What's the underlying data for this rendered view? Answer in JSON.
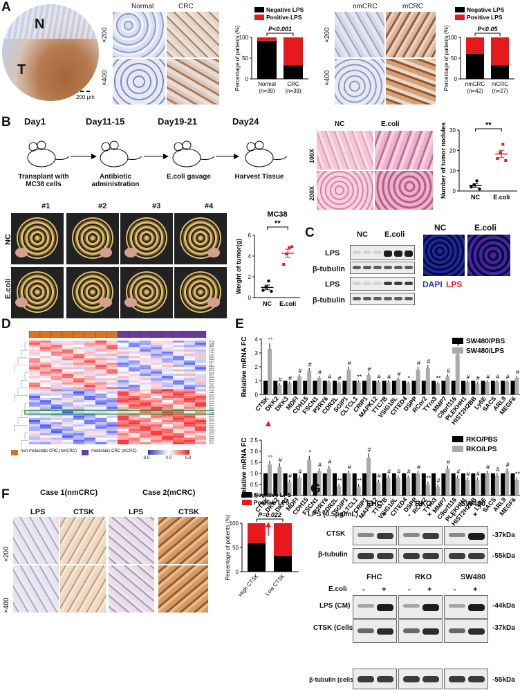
{
  "panels": {
    "A": "A",
    "B": "B",
    "C": "C",
    "D": "D",
    "E": "E",
    "F": "F",
    "G": "G"
  },
  "panelA": {
    "tissue_N": "N",
    "tissue_T": "T",
    "scale": "200 μm",
    "col_normal": "Normal",
    "col_crc": "CRC",
    "col_nmcrc": "nmCRC",
    "col_mcrc": "mCRC",
    "mag200": "×200",
    "mag400": "×400"
  },
  "panelB": {
    "days": [
      "Day1",
      "Day11-15",
      "Day19-21",
      "Day24"
    ],
    "steps": [
      "Transplant with MC38 cells",
      "Antibiotic administration",
      "E.coli gavage",
      "Harvest Tissue"
    ],
    "samples": [
      "#1",
      "#2",
      "#3",
      "#4"
    ],
    "rows": [
      "NC",
      "E.coli"
    ],
    "he_cols": [
      "NC",
      "E.coli"
    ],
    "he_rows": [
      "100X",
      "200X"
    ]
  },
  "panelC": {
    "cols": [
      "NC",
      "E.coli"
    ],
    "rows": [
      "LPS",
      "β-tubulin",
      "LPS",
      "β-tubulin"
    ],
    "if_cols": [
      "NC",
      "E.coli"
    ],
    "dapi": "DAPI",
    "lps": "LPS"
  },
  "panelD": {
    "genes": [
      "PCDHGB6",
      "GABRA2",
      "LRRC31",
      "STYX9",
      "CYP4F12",
      "CYP4F2",
      "CYP4F3",
      "PCK1",
      "TRAG",
      "GALNT4",
      "IYD",
      "ENPP2",
      "LOC100505946",
      "EHHADH",
      "SCN8A",
      "DDO",
      "LOC100507930",
      "KLHL32",
      "NEURL",
      "TSGA10",
      "LOC100289092",
      "RCOR2",
      "TYRO3",
      "MMP7",
      "C9orf116",
      "PLEKHH1",
      "HIST2H2BB",
      "LY6E",
      "SACS",
      "ARL9",
      "MEGF6",
      "LOC100507363",
      "CTSK",
      "COL6A2",
      "DKK2",
      "DKK3",
      "MDFI",
      "CDH15",
      "FSCN1",
      "P2RY6",
      "CDR2L",
      "SGIP1",
      "CLTCL1",
      "CRIP1",
      "MAPK12",
      "TTC7B",
      "VSIG10L"
    ],
    "legend_nm": "non-metastatic CRC (nmCRC)",
    "legend_m": "metastatic CRC (mCRC)",
    "scale_ticks": [
      "-6.0",
      "0.0",
      "6.0"
    ]
  },
  "panelF": {
    "case1": "Case 1(nmCRC)",
    "case2": "Case 2(mCRC)",
    "cols": [
      "LPS",
      "CTSK",
      "LPS",
      "CTSK"
    ],
    "mag200": "×200",
    "mag400": "×400"
  },
  "panelG": {
    "lps_label": "LPS (0.5μg/mL)",
    "ecoli_label": "E.coli",
    "cells": [
      "FHC",
      "RKO",
      "SW480"
    ],
    "signs": [
      "-",
      "+"
    ],
    "top_rows": [
      "CTSK",
      "β-tubulin"
    ],
    "bottom_rows": [
      "LPS (CM)",
      "CTSK (Cells)",
      "β-tubulin (cells)"
    ],
    "kda_top": [
      "-37kDa",
      "-55kDa"
    ],
    "kda_bottom": [
      "-44kDa",
      "-37kDa",
      "-55kDa"
    ]
  },
  "chart_data": [
    {
      "type": "bar",
      "stacked": true,
      "title": "",
      "ylabel": "Percentage of patients (%)",
      "categories": [
        "Normal\n(n=39)",
        "CRC\n(n=39)"
      ],
      "series": [
        {
          "name": "Negative LPS",
          "color": "#000000",
          "values": [
            92,
            33
          ]
        },
        {
          "name": "Positive LPS",
          "color": "#e8191c",
          "values": [
            8,
            67
          ]
        }
      ],
      "ylim": [
        0,
        100
      ],
      "yticks": [
        0,
        50,
        100
      ],
      "annotation": "P<0.001"
    },
    {
      "type": "bar",
      "stacked": true,
      "title": "",
      "ylabel": "Percentage of patients (%)",
      "categories": [
        "nmCRC\n(n=42)",
        "mCRC\n(n=27)"
      ],
      "series": [
        {
          "name": "Negative LPS",
          "color": "#000000",
          "values": [
            60,
            33
          ]
        },
        {
          "name": "Positive LPS",
          "color": "#e8191c",
          "values": [
            40,
            67
          ]
        }
      ],
      "ylim": [
        0,
        100
      ],
      "yticks": [
        0,
        50,
        100
      ],
      "annotation": "P<0.05"
    },
    {
      "type": "scatter",
      "title": "",
      "ylabel": "Number of tumor nodules",
      "categories": [
        "NC",
        "E.coli"
      ],
      "series": [
        {
          "name": "NC",
          "color": "#000000",
          "values": [
            2,
            3,
            5,
            1
          ]
        },
        {
          "name": "E.coli",
          "color": "#e8191c",
          "values": [
            16,
            19,
            23,
            15
          ]
        }
      ],
      "ylim": [
        0,
        30
      ],
      "yticks": [
        0,
        10,
        20,
        30
      ],
      "annotation": "**"
    },
    {
      "type": "scatter",
      "title": "MC38",
      "ylabel": "Weight of tumor(g)",
      "categories": [
        "NC",
        "E.coli"
      ],
      "series": [
        {
          "name": "NC",
          "color": "#000000",
          "values": [
            0.7,
            1.0,
            1.6,
            0.6
          ]
        },
        {
          "name": "E.coli",
          "color": "#e8191c",
          "values": [
            3.2,
            4.2,
            4.8,
            4.9
          ]
        }
      ],
      "ylim": [
        0,
        6
      ],
      "yticks": [
        0,
        2,
        4,
        6
      ],
      "annotation": "**"
    },
    {
      "type": "bar",
      "title": "",
      "ylabel": "Relative mRNA FC",
      "categories": [
        "CTSK",
        "DKK2",
        "DKK3",
        "MDFI",
        "CDH15",
        "FSCN1",
        "P2RY6",
        "CDR2L",
        "SGIP1",
        "CLTCL1",
        "CRIP1",
        "MAPK12",
        "TTC7B",
        "VSIG10L",
        "CITED4",
        "DSPP",
        "RCor2",
        "TYro3",
        "MMP7",
        "C9orf116",
        "PLEKHH1",
        "HIST2H2BB",
        "Ly6E",
        "SACS",
        "ARL9",
        "MEGF6"
      ],
      "series": [
        {
          "name": "SW480/PBS",
          "color": "#000000",
          "values": [
            1,
            1,
            1,
            1,
            1,
            1,
            1,
            1,
            1,
            1,
            1,
            1,
            1,
            1,
            1,
            1,
            1,
            1,
            1,
            1,
            1,
            1,
            1,
            1,
            1,
            1
          ]
        },
        {
          "name": "SW480/LPS",
          "color": "#aaaaaa",
          "values": [
            3.3,
            0.7,
            0.8,
            1.3,
            1.7,
            1.2,
            0.9,
            0.8,
            1.8,
            0.9,
            1.4,
            0.9,
            0.9,
            1.1,
            0.8,
            1.8,
            1.9,
            0.8,
            1.3,
            2.9,
            0.9,
            0.8,
            0.9,
            0.9,
            0.9,
            1.2
          ]
        }
      ],
      "ylim": [
        0,
        4
      ],
      "yticks": [
        0,
        1,
        2,
        3,
        4
      ],
      "significance": [
        "**",
        "#",
        "#",
        "#",
        "#",
        "#",
        "#",
        "#",
        "#",
        "**",
        "#",
        "#",
        "#",
        "#",
        "*",
        "#",
        "#",
        "**",
        "#",
        "*",
        "#",
        "#",
        "#",
        "#",
        "#",
        "#"
      ]
    },
    {
      "type": "bar",
      "title": "",
      "ylabel": "Relative mRNA FC",
      "categories": [
        "CTSK",
        "DKK2",
        "DKK3",
        "MDFI",
        "CDH15",
        "FSCN1",
        "P2RY6",
        "CDR2L",
        "SGIP1",
        "CLTCL1",
        "CRIP1",
        "MAPK12",
        "TTC7B",
        "VSIG10L",
        "CITED4",
        "DSPP",
        "RCor2",
        "TYro3",
        "MMP7",
        "C9orf116",
        "PLEKHH1",
        "HIST2H2BB",
        "Ly6E",
        "SACS",
        "ARL9",
        "MEGF6"
      ],
      "series": [
        {
          "name": "RKO/PBS",
          "color": "#000000",
          "values": [
            1,
            1,
            1,
            1,
            1,
            1,
            1,
            1,
            1,
            1,
            1,
            1,
            1,
            1,
            1,
            1,
            1,
            1,
            1,
            1,
            1,
            1,
            1,
            1,
            1,
            1
          ]
        },
        {
          "name": "RKO/LPS",
          "color": "#aaaaaa",
          "values": [
            1.4,
            1.3,
            0.6,
            0.8,
            1.6,
            1.1,
            1.2,
            0.4,
            1.0,
            0.4,
            1.7,
            0.6,
            0.8,
            0.8,
            0.8,
            1.0,
            0.5,
            0.4,
            1.2,
            0.8,
            0.7,
            0.7,
            1.0,
            0.9,
            1.1,
            0.7
          ]
        }
      ],
      "ylim": [
        0,
        2.5
      ],
      "yticks": [
        0.0,
        0.5,
        1.0,
        1.5,
        2.0,
        2.5
      ],
      "significance": [
        "**",
        "#",
        "#",
        "#",
        "*",
        "#",
        "#",
        "**",
        "#",
        "**",
        "#",
        "#",
        "#",
        "#",
        "#",
        "#",
        "**",
        "#",
        "#",
        "#",
        "#",
        "#",
        "#",
        "#",
        "#",
        "**"
      ]
    },
    {
      "type": "bar",
      "stacked": true,
      "title": "",
      "ylabel": "Percentage of patients (%)",
      "categories": [
        "High CTSK",
        "Low CTSK"
      ],
      "series": [
        {
          "name": "Negative LPS",
          "color": "#000000",
          "values": [
            59,
            33
          ]
        },
        {
          "name": "Positive LPS",
          "color": "#e8191c",
          "values": [
            41,
            67
          ]
        }
      ],
      "ylim": [
        0,
        100
      ],
      "yticks": [
        0,
        50,
        100
      ],
      "annotation": "P=0.022"
    }
  ]
}
